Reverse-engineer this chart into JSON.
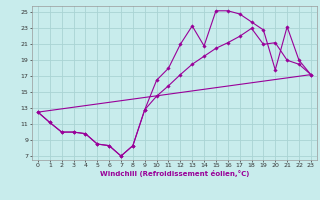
{
  "xlabel": "Windchill (Refroidissement éolien,°C)",
  "bg_color": "#c8ecec",
  "grid_color": "#aad4d4",
  "line_color": "#990099",
  "xlim": [
    -0.5,
    23.5
  ],
  "ylim": [
    6.5,
    25.8
  ],
  "xticks": [
    0,
    1,
    2,
    3,
    4,
    5,
    6,
    7,
    8,
    9,
    10,
    11,
    12,
    13,
    14,
    15,
    16,
    17,
    18,
    19,
    20,
    21,
    22,
    23
  ],
  "yticks": [
    7,
    9,
    11,
    13,
    15,
    17,
    19,
    21,
    23,
    25
  ],
  "line1_x": [
    0,
    1,
    2,
    3,
    4,
    5,
    6,
    7,
    8,
    9,
    10,
    11,
    12,
    13,
    14,
    15,
    16,
    17,
    18,
    19,
    20,
    21,
    22,
    23
  ],
  "line1_y": [
    12.5,
    11.2,
    10.0,
    10.0,
    9.8,
    8.5,
    8.3,
    7.0,
    8.3,
    12.8,
    16.5,
    18.0,
    21.0,
    23.3,
    20.8,
    25.2,
    25.2,
    24.8,
    23.8,
    22.8,
    17.8,
    23.2,
    19.0,
    17.2
  ],
  "line2_x": [
    0,
    1,
    2,
    3,
    4,
    5,
    6,
    7,
    8,
    9,
    10,
    11,
    12,
    13,
    14,
    15,
    16,
    17,
    18,
    19,
    20,
    21,
    22,
    23
  ],
  "line2_y": [
    12.5,
    11.2,
    10.0,
    10.0,
    9.8,
    8.5,
    8.3,
    7.0,
    8.3,
    12.8,
    14.5,
    15.8,
    17.2,
    18.5,
    19.5,
    20.5,
    21.2,
    22.0,
    23.0,
    21.0,
    21.2,
    19.0,
    18.5,
    17.2
  ],
  "line3_x": [
    0,
    23
  ],
  "line3_y": [
    12.5,
    17.2
  ],
  "marker_size": 1.8,
  "line_width": 0.8,
  "tick_fontsize": 4.5,
  "xlabel_fontsize": 5.0
}
